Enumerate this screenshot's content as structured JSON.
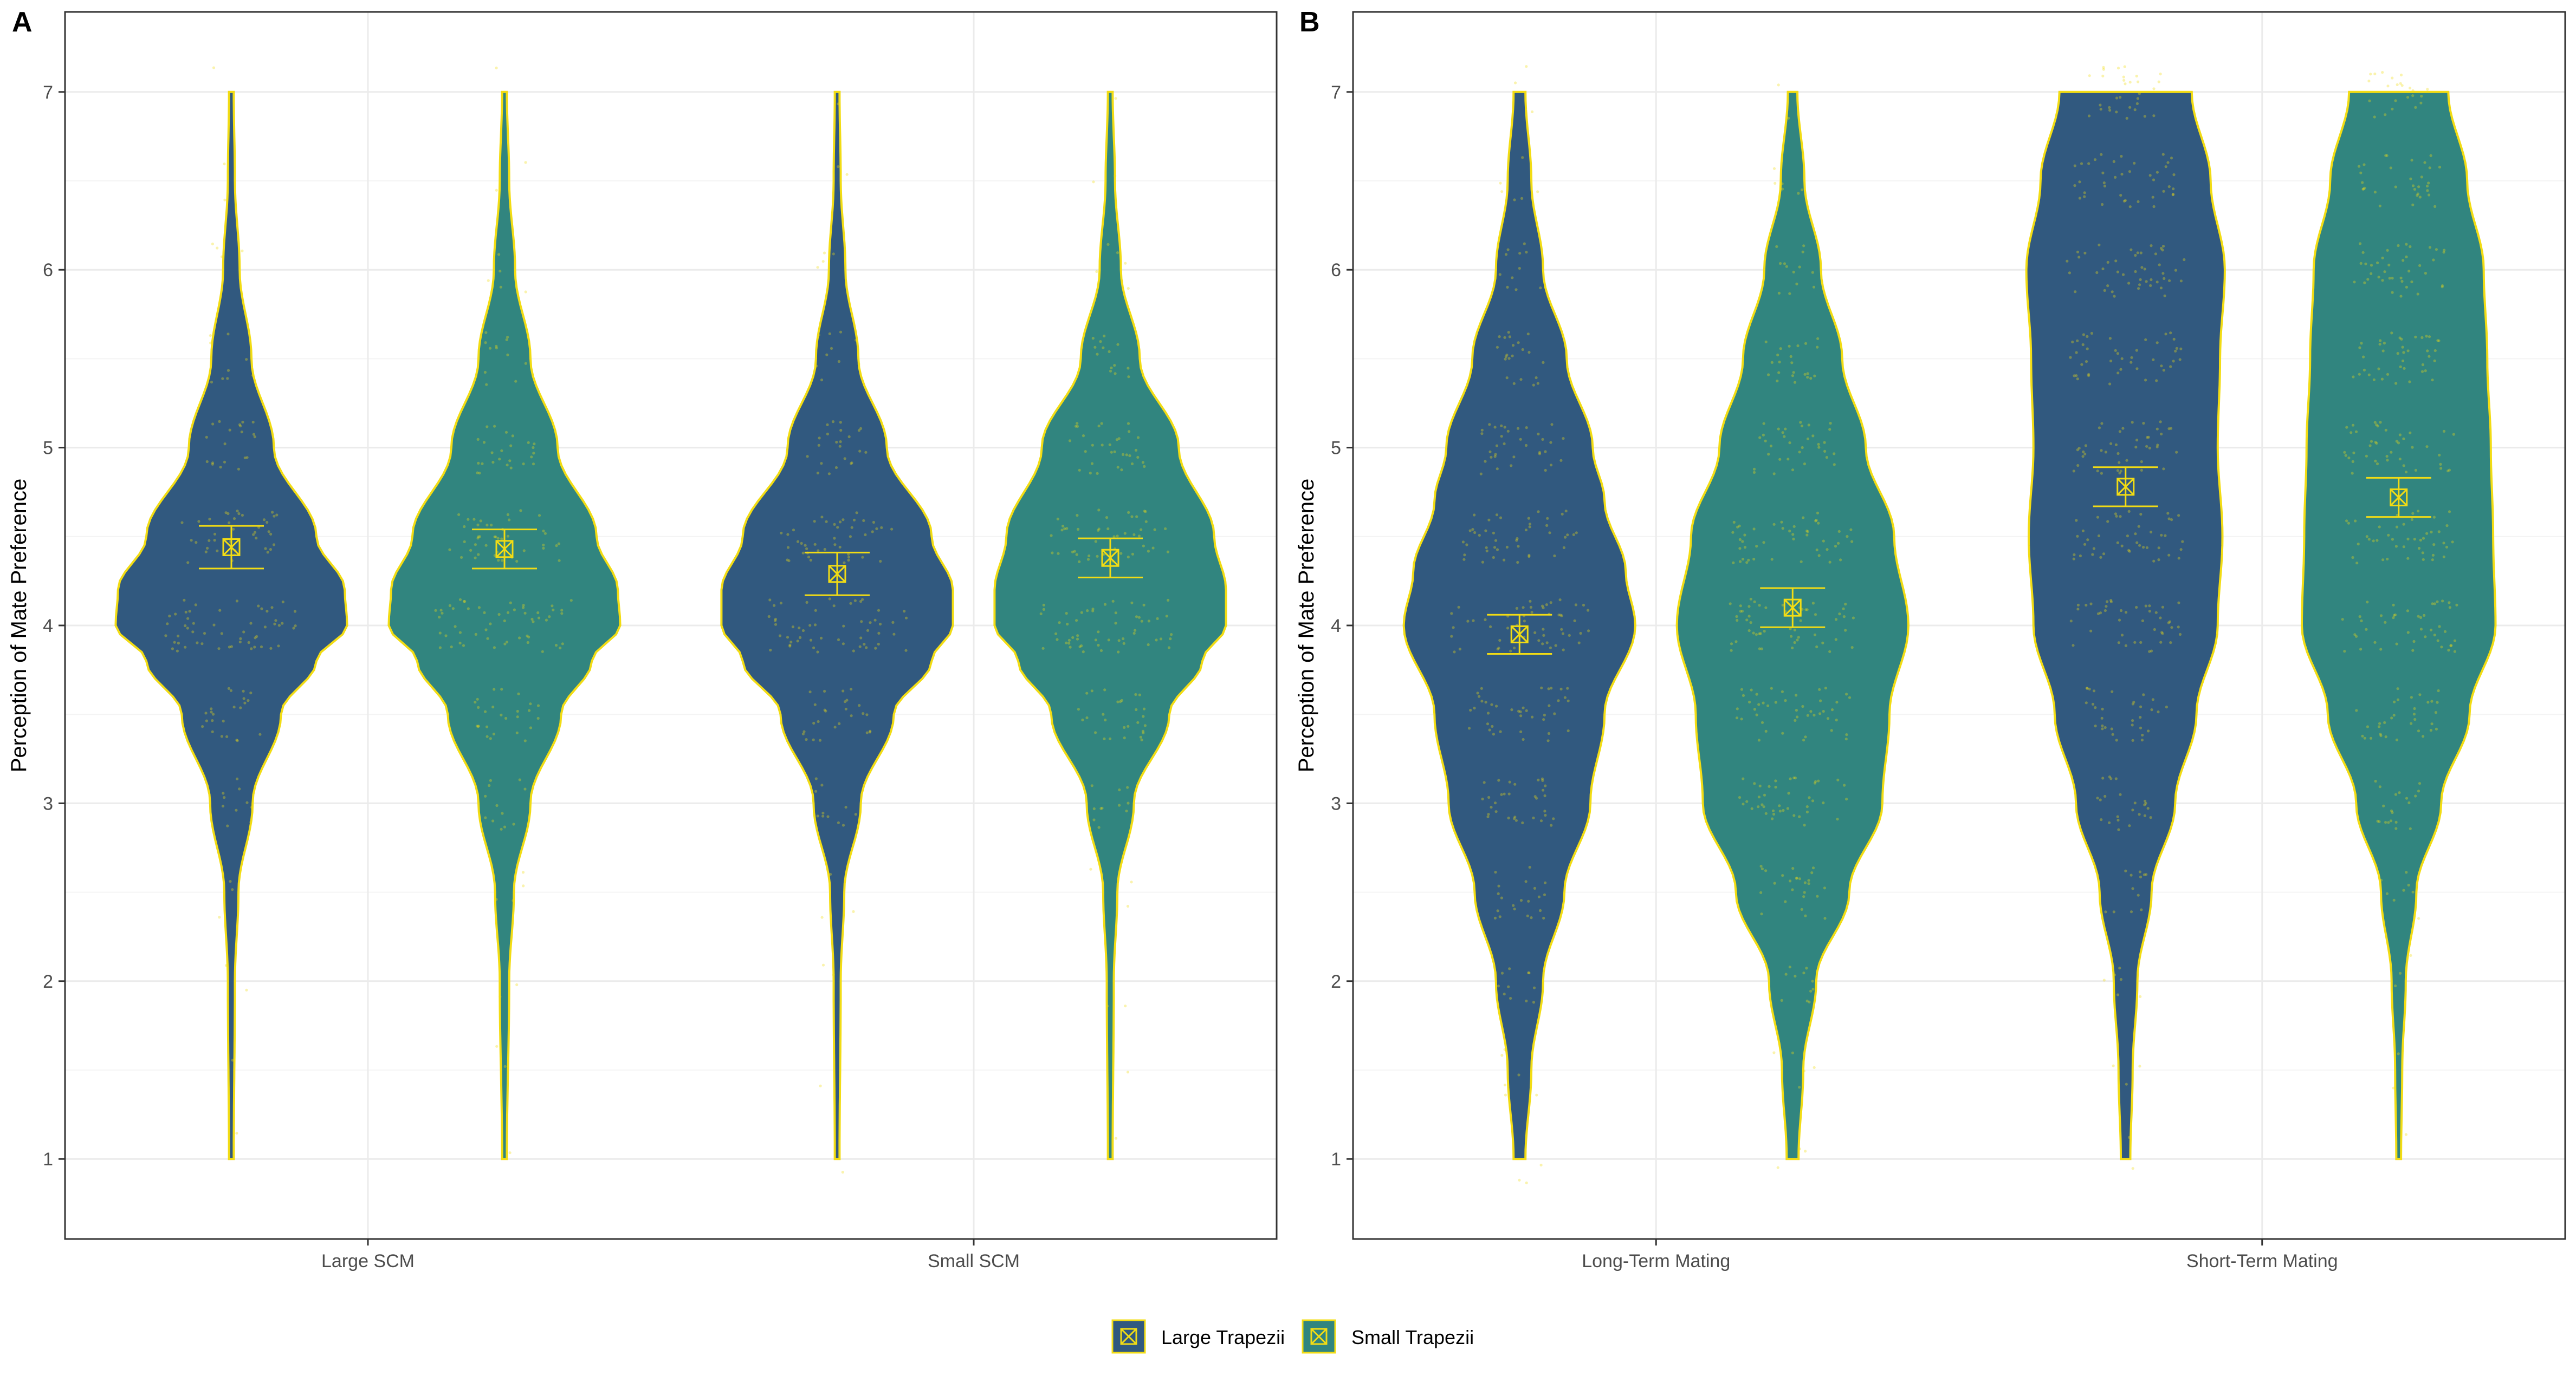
{
  "chart_data": [
    {
      "panel": "A",
      "type": "violin",
      "ylabel": "Perception of Mate Preference",
      "ylim": [
        0.55,
        7.45
      ],
      "yticks": [
        1,
        2,
        3,
        4,
        5,
        6,
        7
      ],
      "grid": true,
      "categories": [
        "Large SCM",
        "Small SCM"
      ],
      "series": [
        {
          "name": "Large Trapezii",
          "category": "Large SCM",
          "density": [
            [
              1,
              0.02
            ],
            [
              2,
              0.03
            ],
            [
              2.5,
              0.06
            ],
            [
              3,
              0.18
            ],
            [
              3.5,
              0.42
            ],
            [
              3.8,
              0.72
            ],
            [
              4,
              0.98
            ],
            [
              4.2,
              0.96
            ],
            [
              4.5,
              0.72
            ],
            [
              5,
              0.36
            ],
            [
              5.5,
              0.17
            ],
            [
              6,
              0.07
            ],
            [
              6.5,
              0.03
            ],
            [
              7,
              0.02
            ]
          ],
          "mean": 4.44,
          "ci": [
            4.32,
            4.56
          ]
        },
        {
          "name": "Small Trapezii",
          "category": "Large SCM",
          "density": [
            [
              1,
              0.02
            ],
            [
              2,
              0.04
            ],
            [
              2.5,
              0.08
            ],
            [
              3,
              0.22
            ],
            [
              3.5,
              0.48
            ],
            [
              3.8,
              0.74
            ],
            [
              4,
              0.98
            ],
            [
              4.2,
              0.96
            ],
            [
              4.5,
              0.78
            ],
            [
              5,
              0.45
            ],
            [
              5.5,
              0.22
            ],
            [
              6,
              0.09
            ],
            [
              6.5,
              0.04
            ],
            [
              7,
              0.02
            ]
          ],
          "mean": 4.43,
          "ci": [
            4.32,
            4.54
          ]
        },
        {
          "name": "Large Trapezii",
          "category": "Small SCM",
          "density": [
            [
              1,
              0.02
            ],
            [
              2,
              0.03
            ],
            [
              2.5,
              0.06
            ],
            [
              3,
              0.2
            ],
            [
              3.5,
              0.48
            ],
            [
              3.8,
              0.8
            ],
            [
              4,
              0.98
            ],
            [
              4.2,
              0.98
            ],
            [
              4.5,
              0.8
            ],
            [
              5,
              0.42
            ],
            [
              5.5,
              0.18
            ],
            [
              6,
              0.07
            ],
            [
              6.5,
              0.03
            ],
            [
              7,
              0.02
            ]
          ],
          "mean": 4.29,
          "ci": [
            4.17,
            4.41
          ]
        },
        {
          "name": "Small Trapezii",
          "category": "Small SCM",
          "density": [
            [
              1,
              0.02
            ],
            [
              2,
              0.03
            ],
            [
              2.5,
              0.06
            ],
            [
              3,
              0.2
            ],
            [
              3.5,
              0.5
            ],
            [
              3.8,
              0.78
            ],
            [
              4,
              0.98
            ],
            [
              4.2,
              0.98
            ],
            [
              4.5,
              0.88
            ],
            [
              5,
              0.58
            ],
            [
              5.5,
              0.25
            ],
            [
              6,
              0.09
            ],
            [
              6.5,
              0.04
            ],
            [
              7,
              0.02
            ]
          ],
          "mean": 4.38,
          "ci": [
            4.27,
            4.49
          ]
        }
      ]
    },
    {
      "panel": "B",
      "type": "violin",
      "ylabel": "Perception of Mate Preference",
      "ylim": [
        0.55,
        7.45
      ],
      "yticks": [
        1,
        2,
        3,
        4,
        5,
        6,
        7
      ],
      "grid": true,
      "categories": [
        "Long-Term Mating",
        "Short-Term Mating"
      ],
      "series": [
        {
          "name": "Large Trapezii",
          "category": "Long-Term Mating",
          "density": [
            [
              1,
              0.05
            ],
            [
              1.5,
              0.1
            ],
            [
              2,
              0.2
            ],
            [
              2.5,
              0.38
            ],
            [
              3,
              0.6
            ],
            [
              3.5,
              0.72
            ],
            [
              4,
              0.98
            ],
            [
              4.3,
              0.9
            ],
            [
              4.7,
              0.72
            ],
            [
              5,
              0.62
            ],
            [
              5.5,
              0.4
            ],
            [
              6,
              0.2
            ],
            [
              6.5,
              0.1
            ],
            [
              7,
              0.05
            ]
          ],
          "mean": 3.95,
          "ci": [
            3.84,
            4.06
          ]
        },
        {
          "name": "Small Trapezii",
          "category": "Long-Term Mating",
          "density": [
            [
              1,
              0.05
            ],
            [
              1.5,
              0.09
            ],
            [
              2,
              0.2
            ],
            [
              2.5,
              0.48
            ],
            [
              3,
              0.76
            ],
            [
              3.5,
              0.82
            ],
            [
              4,
              0.98
            ],
            [
              4.5,
              0.86
            ],
            [
              5,
              0.62
            ],
            [
              5.5,
              0.42
            ],
            [
              6,
              0.24
            ],
            [
              6.5,
              0.1
            ],
            [
              7,
              0.04
            ]
          ],
          "mean": 4.1,
          "ci": [
            3.99,
            4.21
          ]
        },
        {
          "name": "Large Trapezii",
          "category": "Short-Term Mating",
          "density": [
            [
              1,
              0.04
            ],
            [
              1.5,
              0.06
            ],
            [
              2,
              0.1
            ],
            [
              2.5,
              0.22
            ],
            [
              3,
              0.42
            ],
            [
              3.5,
              0.6
            ],
            [
              4,
              0.78
            ],
            [
              4.5,
              0.82
            ],
            [
              5,
              0.78
            ],
            [
              5.5,
              0.8
            ],
            [
              6,
              0.84
            ],
            [
              6.5,
              0.72
            ],
            [
              7,
              0.56
            ]
          ],
          "mean": 4.78,
          "ci": [
            4.67,
            4.89
          ]
        },
        {
          "name": "Small Trapezii",
          "category": "Short-Term Mating",
          "density": [
            [
              1,
              0.02
            ],
            [
              1.5,
              0.03
            ],
            [
              2,
              0.06
            ],
            [
              2.5,
              0.15
            ],
            [
              3,
              0.36
            ],
            [
              3.5,
              0.6
            ],
            [
              4,
              0.82
            ],
            [
              4.5,
              0.8
            ],
            [
              5,
              0.78
            ],
            [
              5.5,
              0.75
            ],
            [
              6,
              0.72
            ],
            [
              6.5,
              0.58
            ],
            [
              7,
              0.42
            ]
          ],
          "mean": 4.72,
          "ci": [
            4.61,
            4.83
          ]
        }
      ]
    }
  ],
  "legend": {
    "position": "bottom",
    "items": [
      {
        "label": "Large Trapezii",
        "color": "#31597f"
      },
      {
        "label": "Small Trapezii",
        "color": "#31857f"
      }
    ]
  },
  "colors": {
    "large_trapezii": "#31597f",
    "small_trapezii": "#31857f",
    "outline": "#f2dc14",
    "grid": "#ebebeb",
    "panel_border": "#333333"
  }
}
